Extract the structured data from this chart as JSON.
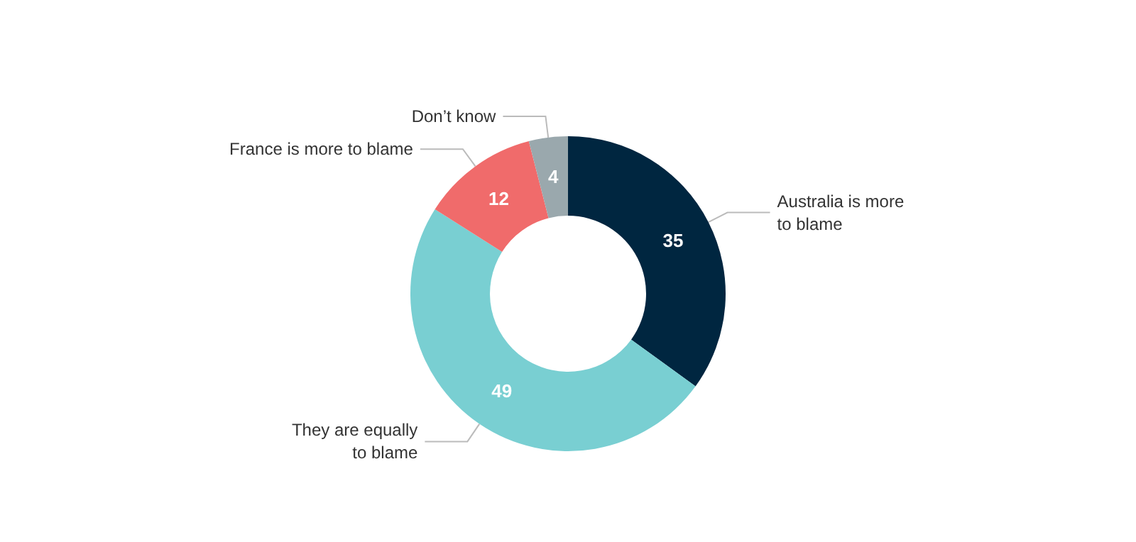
{
  "chart_data": {
    "type": "donut",
    "categories": [
      "Australia is more\nto blame",
      "They are equally\nto blame",
      "France is more to blame",
      "Don’t know"
    ],
    "values": [
      35,
      49,
      12,
      4
    ],
    "colors": [
      "#002640",
      "#79cfd2",
      "#f06b6b",
      "#9aa8ad"
    ],
    "data_labels": true
  }
}
